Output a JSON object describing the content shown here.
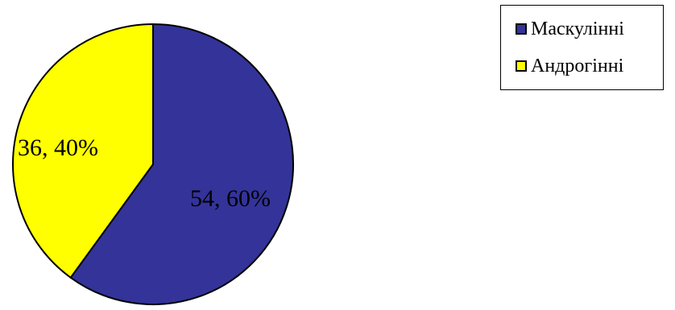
{
  "chart_data": {
    "type": "pie",
    "categories": [
      "Маскулінні",
      "Андрогінні"
    ],
    "values": [
      54,
      36
    ],
    "data_labels": [
      "54, 60%",
      "36, 40%"
    ],
    "colors": [
      "#333399",
      "#ffff00"
    ],
    "legend_position": "top-right"
  },
  "legend": {
    "items": [
      {
        "label": "Маскулінні",
        "color": "#333399"
      },
      {
        "label": "Андрогінні",
        "color": "#ffff00"
      }
    ]
  }
}
